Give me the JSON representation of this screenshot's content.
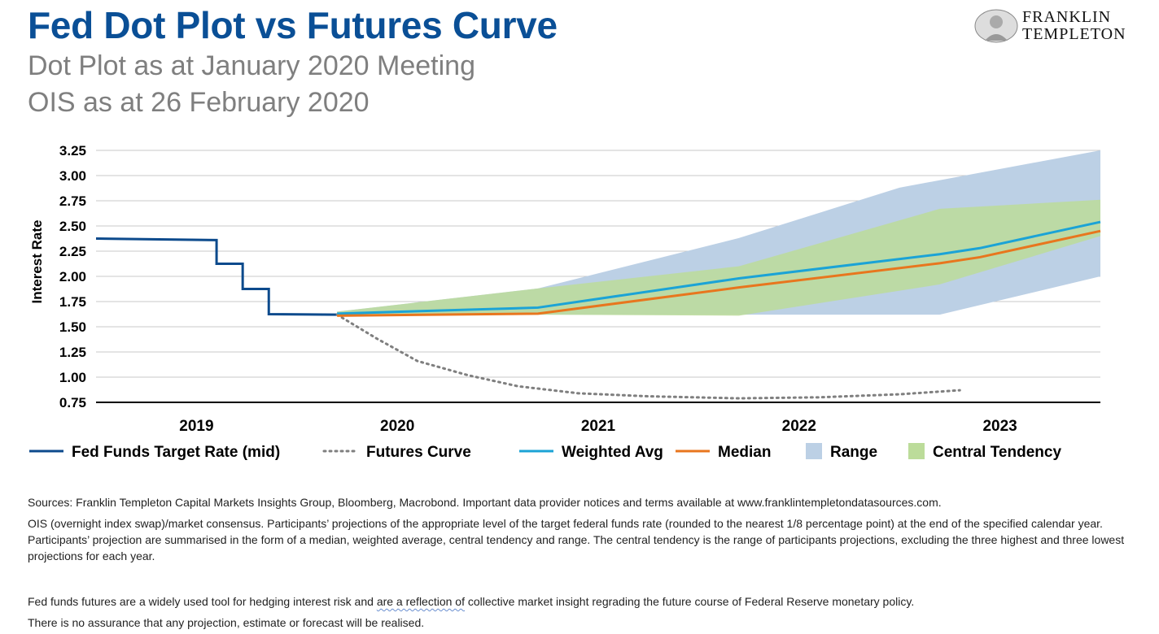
{
  "header": {
    "title": "Fed Dot Plot vs Futures Curve",
    "subtitle_1": "Dot Plot as at January 2020 Meeting",
    "subtitle_2": "OIS as at 26 February 2020",
    "logo_line1": "FRANKLIN",
    "logo_line2": "TEMPLETON"
  },
  "colors": {
    "title": "#0a4f96",
    "fed_funds": "#0c4a8c",
    "futures": "#7f7f7f",
    "weighted_avg": "#1ba3d6",
    "median": "#e8761e",
    "range": "#bcd0e5",
    "central_tendency": "#bcdc9a"
  },
  "chart_data": {
    "type": "line",
    "title": "",
    "xlabel": "",
    "ylabel": "Interest Rate",
    "ylim": [
      0.75,
      3.25
    ],
    "yticks": [
      "3.25",
      "3.00",
      "2.75",
      "2.50",
      "2.25",
      "2.00",
      "1.75",
      "1.50",
      "1.25",
      "1.00",
      "0.75"
    ],
    "ytick_values": [
      3.25,
      3.0,
      2.75,
      2.5,
      2.25,
      2.0,
      1.75,
      1.5,
      1.25,
      1.0,
      0.75
    ],
    "categories": [
      "2019",
      "2020",
      "2021",
      "2022",
      "2023"
    ],
    "xlim": [
      2019.0,
      2024.0
    ],
    "grid": true,
    "legend_position": "bottom",
    "series": [
      {
        "name": "Fed Funds Target Rate (mid)",
        "style": "solid-step",
        "points": [
          [
            2019.0,
            2.375
          ],
          [
            2019.6,
            2.36
          ],
          [
            2019.6,
            2.125
          ],
          [
            2019.73,
            2.125
          ],
          [
            2019.73,
            1.875
          ],
          [
            2019.86,
            1.875
          ],
          [
            2019.86,
            1.625
          ],
          [
            2020.2,
            1.62
          ]
        ]
      },
      {
        "name": "Futures Curve",
        "style": "dotted",
        "points": [
          [
            2020.2,
            1.62
          ],
          [
            2020.4,
            1.38
          ],
          [
            2020.6,
            1.16
          ],
          [
            2020.85,
            1.02
          ],
          [
            2021.1,
            0.91
          ],
          [
            2021.4,
            0.84
          ],
          [
            2021.75,
            0.81
          ],
          [
            2022.2,
            0.79
          ],
          [
            2022.6,
            0.8
          ],
          [
            2023.0,
            0.83
          ],
          [
            2023.3,
            0.87
          ]
        ]
      },
      {
        "name": "Weighted Avg",
        "style": "solid",
        "points": [
          [
            2020.2,
            1.63
          ],
          [
            2021.2,
            1.69
          ],
          [
            2022.2,
            1.98
          ],
          [
            2023.2,
            2.22
          ],
          [
            2023.4,
            2.28
          ],
          [
            2024.0,
            2.54
          ]
        ]
      },
      {
        "name": "Median",
        "style": "solid",
        "points": [
          [
            2020.2,
            1.61
          ],
          [
            2021.2,
            1.63
          ],
          [
            2022.2,
            1.89
          ],
          [
            2023.2,
            2.13
          ],
          [
            2023.4,
            2.19
          ],
          [
            2024.0,
            2.45
          ]
        ]
      }
    ],
    "bands": [
      {
        "name": "Range",
        "upper": [
          [
            2020.2,
            1.65
          ],
          [
            2021.2,
            1.88
          ],
          [
            2022.2,
            2.38
          ],
          [
            2023.0,
            2.88
          ],
          [
            2024.0,
            3.25
          ]
        ],
        "lower": [
          [
            2020.2,
            1.62
          ],
          [
            2021.2,
            1.62
          ],
          [
            2022.2,
            1.62
          ],
          [
            2023.2,
            1.62
          ],
          [
            2024.0,
            2.0
          ]
        ]
      },
      {
        "name": "Central Tendency",
        "upper": [
          [
            2020.2,
            1.65
          ],
          [
            2021.2,
            1.88
          ],
          [
            2022.2,
            2.1
          ],
          [
            2023.2,
            2.67
          ],
          [
            2024.0,
            2.76
          ]
        ],
        "lower": [
          [
            2020.2,
            1.62
          ],
          [
            2021.2,
            1.62
          ],
          [
            2022.2,
            1.61
          ],
          [
            2023.2,
            1.92
          ],
          [
            2024.0,
            2.4
          ]
        ]
      }
    ],
    "legend": [
      "Fed Funds Target Rate (mid)",
      "Futures Curve",
      "Weighted Avg",
      "Median",
      "Range",
      "Central Tendency"
    ]
  },
  "notes": {
    "sources": "Sources: Franklin Templeton Capital Markets Insights Group, Bloomberg, Macrobond. Important data provider notices and terms available at www.franklintempletondatasources.com.",
    "ois": "OIS (overnight index swap)/market consensus. Participants’ projections of the appropriate level of the target federal funds rate (rounded to the nearest 1/8 percentage point) at the end of the specified calendar year. Participants’ projection are summarised in the form of a median, weighted average, central tendency and range. The central tendency is the range of participants projections, excluding the three highest and three lowest projections for each year.",
    "futures_part1": "Fed funds futures are a widely used tool for hedging interest risk and ",
    "futures_part2": "are a reflection of",
    "futures_part3": " collective market insight regrading the future course of Federal Reserve monetary policy.",
    "assurance": "There is no assurance that any projection, estimate or forecast will be realised."
  }
}
